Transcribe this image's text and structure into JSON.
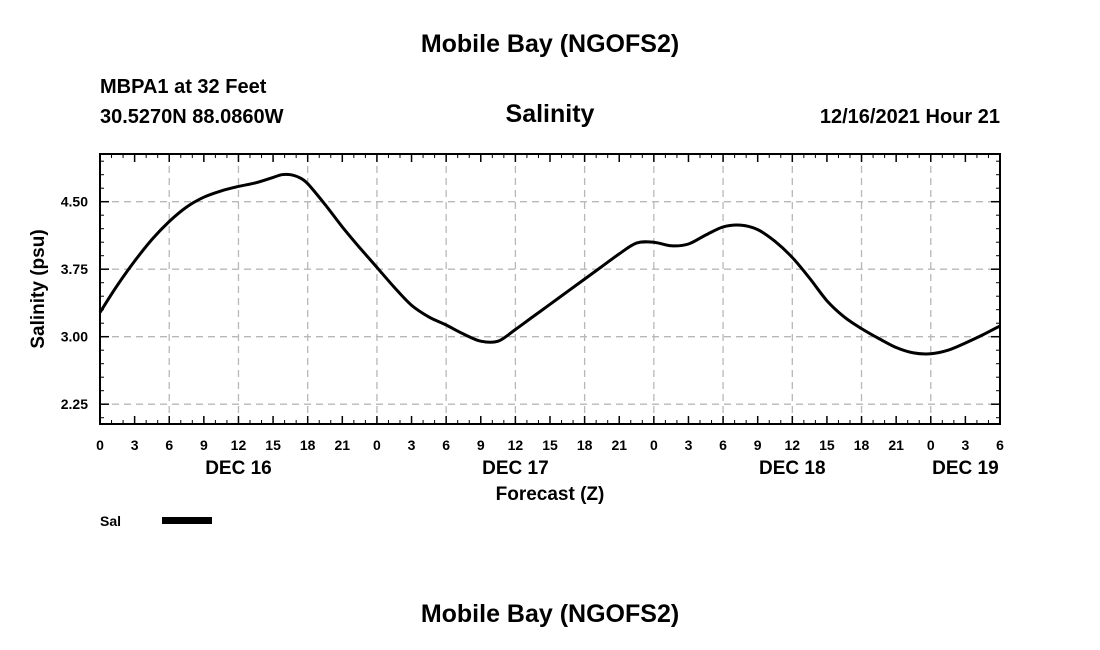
{
  "page": {
    "top_title": "Mobile Bay (NGOFS2)",
    "bottom_title": "Mobile Bay (NGOFS2)",
    "station_line": "MBPA1 at 32 Feet",
    "coords_line": "30.5270N  88.0860W",
    "datetime_line": "12/16/2021 Hour 21"
  },
  "chart_data": {
    "type": "line",
    "title": "Salinity",
    "xlabel": "Forecast (Z)",
    "ylabel": "Salinity (psu)",
    "xlim": [
      0,
      78
    ],
    "ylim": [
      2.03,
      5.03
    ],
    "grid": true,
    "x_tick_labels": [
      "0",
      "3",
      "6",
      "9",
      "12",
      "15",
      "18",
      "21",
      "0",
      "3",
      "6",
      "9",
      "12",
      "15",
      "18",
      "21",
      "0",
      "3",
      "6",
      "9",
      "12",
      "15",
      "18",
      "21",
      "0",
      "3",
      "6"
    ],
    "y_ticks": [
      2.25,
      3.0,
      3.75,
      4.5
    ],
    "y_tick_labels": [
      "2.25",
      "3.00",
      "3.75",
      "4.50"
    ],
    "day_labels": [
      {
        "label": "DEC 16",
        "x": 12
      },
      {
        "label": "DEC 17",
        "x": 36
      },
      {
        "label": "DEC 18",
        "x": 60
      },
      {
        "label": "DEC 19",
        "x": 75
      }
    ],
    "legend": {
      "placement": "bottom-left",
      "entries": [
        {
          "label": "Sal",
          "color": "#000000"
        }
      ]
    },
    "series": [
      {
        "name": "Sal",
        "color": "#000000",
        "x": [
          0,
          1.5,
          3,
          4.5,
          6,
          7.5,
          9,
          10.5,
          12,
          13.5,
          15,
          15.75,
          16.5,
          17.25,
          18,
          19.5,
          21,
          22.5,
          24,
          25.5,
          27,
          28.5,
          30,
          31.5,
          33,
          34.5,
          36,
          37.5,
          39,
          40.5,
          42,
          43.5,
          45,
          46.5,
          48,
          49.5,
          51,
          52.5,
          54,
          55.5,
          57,
          58.5,
          60,
          61.5,
          63,
          64.5,
          66,
          67.5,
          69,
          70.5,
          72,
          73.5,
          75,
          76.5,
          78
        ],
        "y": [
          3.27,
          3.57,
          3.84,
          4.08,
          4.28,
          4.44,
          4.55,
          4.62,
          4.67,
          4.71,
          4.77,
          4.8,
          4.8,
          4.77,
          4.7,
          4.47,
          4.22,
          3.99,
          3.77,
          3.55,
          3.35,
          3.22,
          3.13,
          3.03,
          2.95,
          2.95,
          3.08,
          3.22,
          3.36,
          3.5,
          3.64,
          3.78,
          3.92,
          4.04,
          4.05,
          4.01,
          4.03,
          4.13,
          4.22,
          4.24,
          4.19,
          4.06,
          3.88,
          3.65,
          3.4,
          3.22,
          3.09,
          2.98,
          2.88,
          2.82,
          2.81,
          2.85,
          2.93,
          3.02,
          3.12
        ]
      }
    ]
  }
}
